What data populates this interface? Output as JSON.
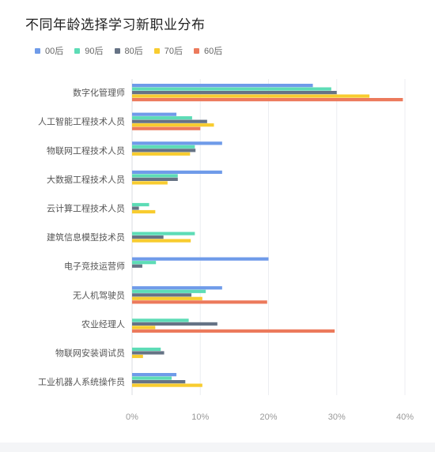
{
  "chart_data": {
    "type": "bar",
    "orientation": "horizontal",
    "title": "不同年龄选择学习新职业分布",
    "categories": [
      "数字化管理师",
      "人工智能工程技术人员",
      "物联网工程技术人员",
      "大数据工程技术人员",
      "云计算工程技术人员",
      "建筑信息模型技术员",
      "电子竞技运营师",
      "无人机驾驶员",
      "农业经理人",
      "物联网安装调试员",
      "工业机器人系统操作员"
    ],
    "series": [
      {
        "name": "00后",
        "color": "#6f9be9",
        "values": [
          26.5,
          6.5,
          13.2,
          13.2,
          0,
          0,
          20,
          13.2,
          0,
          0,
          6.5
        ]
      },
      {
        "name": "90后",
        "color": "#5ddcb6",
        "values": [
          29.2,
          8.8,
          9.2,
          6.7,
          2.5,
          9.2,
          3.5,
          10.8,
          8.3,
          4.2,
          5.8
        ]
      },
      {
        "name": "80后",
        "color": "#667385",
        "values": [
          30,
          11,
          9.3,
          6.7,
          1,
          4.6,
          1.5,
          8.7,
          12.5,
          4.7,
          7.8
        ]
      },
      {
        "name": "70后",
        "color": "#f8cc2f",
        "values": [
          34.8,
          12,
          8.5,
          5.2,
          3.4,
          8.6,
          0,
          10.3,
          3.4,
          1.6,
          10.3
        ]
      },
      {
        "name": "60后",
        "color": "#ec7a5c",
        "values": [
          39.7,
          10,
          0,
          0,
          0,
          0,
          0,
          19.8,
          29.7,
          0,
          0
        ]
      }
    ],
    "xlim": [
      0,
      40
    ],
    "xticks": [
      "0%",
      "10%",
      "20%",
      "30%",
      "40%"
    ],
    "grid": true,
    "legend": "top-left"
  }
}
